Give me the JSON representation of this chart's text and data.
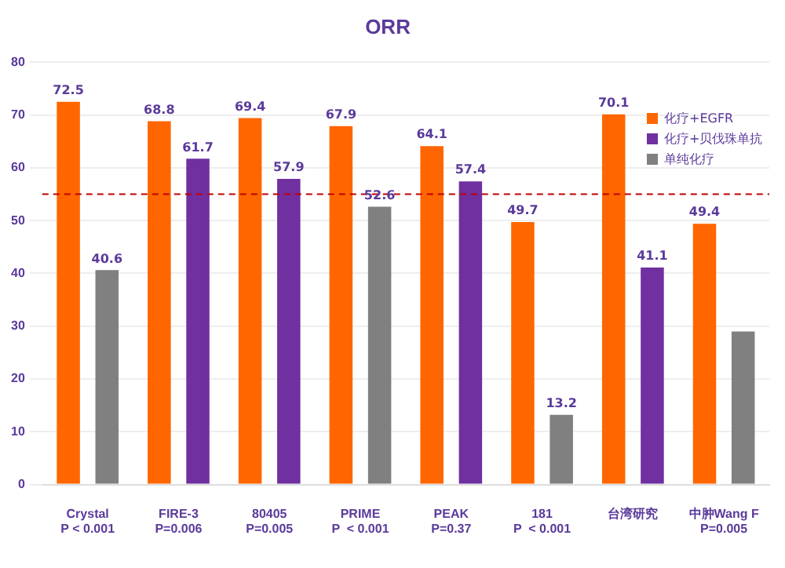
{
  "chart_data": {
    "type": "bar",
    "title": "ORR",
    "categories": [
      "Crystal\nP < 0.001",
      "FIRE-3\nP=0.006",
      "80405\nP=0.005",
      "PRIME\nP  < 0.001",
      "PEAK\nP=0.37",
      "181\nP  < 0.001",
      "台湾研究",
      "中肿Wang F\nP=0.005"
    ],
    "series": [
      {
        "name": "化疗+EGFR",
        "color": "#ff6600",
        "values": [
          72.5,
          68.8,
          69.4,
          67.9,
          64.1,
          49.7,
          70.1,
          49.4
        ]
      },
      {
        "name": "化疗+贝伐珠单抗",
        "color": "#7030a0",
        "values": [
          null,
          61.7,
          57.9,
          null,
          57.4,
          null,
          41.1,
          null
        ],
        "value_labels": [
          null,
          "61.7",
          "57.9",
          null,
          "57.4",
          null,
          "41.1",
          null
        ]
      },
      {
        "name": "单纯化疗",
        "color": "#808080",
        "values": [
          40.6,
          null,
          null,
          52.6,
          null,
          13.2,
          null,
          29
        ],
        "value_labels": [
          "40.6",
          null,
          null,
          "52.6",
          null,
          "13.2",
          null,
          null
        ]
      }
    ],
    "value_labels": [
      "72.5",
      "68.8",
      "69.4",
      "67.9",
      "64.1",
      "49.7",
      "70.1",
      "49.4"
    ],
    "ylim": [
      0,
      80
    ],
    "yticks": [
      0,
      10,
      20,
      30,
      40,
      50,
      60,
      70,
      80
    ],
    "grid": "y",
    "legend": "top right",
    "ref_lines": [
      {
        "axis": "y",
        "value": 55,
        "color": "#c00000",
        "line_style": "dashed"
      }
    ]
  }
}
